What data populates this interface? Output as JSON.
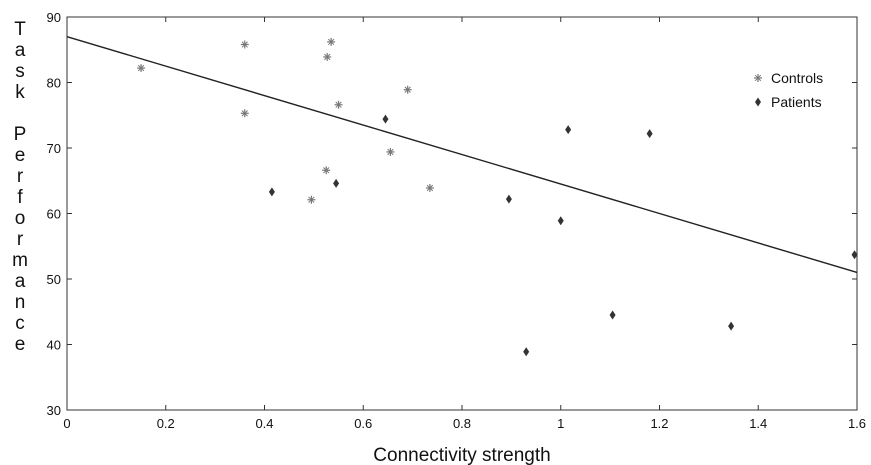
{
  "chart_data": {
    "type": "scatter",
    "title": "",
    "xlabel": "Connectivity strength",
    "ylabel": "Task Performance",
    "xlim": [
      0,
      1.6
    ],
    "ylim": [
      30,
      90
    ],
    "x_ticks": [
      0,
      0.2,
      0.4,
      0.6,
      0.8,
      1,
      1.2,
      1.4,
      1.6
    ],
    "x_tick_labels": [
      "0",
      "0.2",
      "0.4",
      "0.6",
      "0.8",
      "1",
      "1.2",
      "1.4",
      "1.6"
    ],
    "y_ticks": [
      30,
      40,
      50,
      60,
      70,
      80,
      90
    ],
    "y_tick_labels": [
      "30",
      "40",
      "50",
      "60",
      "70",
      "80",
      "90"
    ],
    "grid": false,
    "legend_position": "top-right",
    "series": [
      {
        "name": "Controls",
        "marker": "star",
        "color": "#777777",
        "points": [
          {
            "x": 0.15,
            "y": 82.2
          },
          {
            "x": 0.36,
            "y": 85.8
          },
          {
            "x": 0.36,
            "y": 75.3
          },
          {
            "x": 0.495,
            "y": 62.1
          },
          {
            "x": 0.525,
            "y": 66.6
          },
          {
            "x": 0.527,
            "y": 83.9
          },
          {
            "x": 0.535,
            "y": 86.2
          },
          {
            "x": 0.55,
            "y": 76.6
          },
          {
            "x": 0.655,
            "y": 69.4
          },
          {
            "x": 0.69,
            "y": 78.9
          },
          {
            "x": 0.735,
            "y": 63.9
          }
        ]
      },
      {
        "name": "Patients",
        "marker": "diamond",
        "color": "#333333",
        "points": [
          {
            "x": 0.415,
            "y": 63.3
          },
          {
            "x": 0.545,
            "y": 64.6
          },
          {
            "x": 0.645,
            "y": 74.4
          },
          {
            "x": 0.895,
            "y": 62.2
          },
          {
            "x": 0.93,
            "y": 38.9
          },
          {
            "x": 1.0,
            "y": 58.9
          },
          {
            "x": 1.015,
            "y": 72.8
          },
          {
            "x": 1.105,
            "y": 44.5
          },
          {
            "x": 1.18,
            "y": 72.2
          },
          {
            "x": 1.345,
            "y": 42.8
          },
          {
            "x": 1.595,
            "y": 53.7
          }
        ]
      }
    ],
    "trendline": {
      "x": [
        0,
        1.6
      ],
      "y": [
        87,
        51
      ],
      "color": "#222222"
    }
  }
}
